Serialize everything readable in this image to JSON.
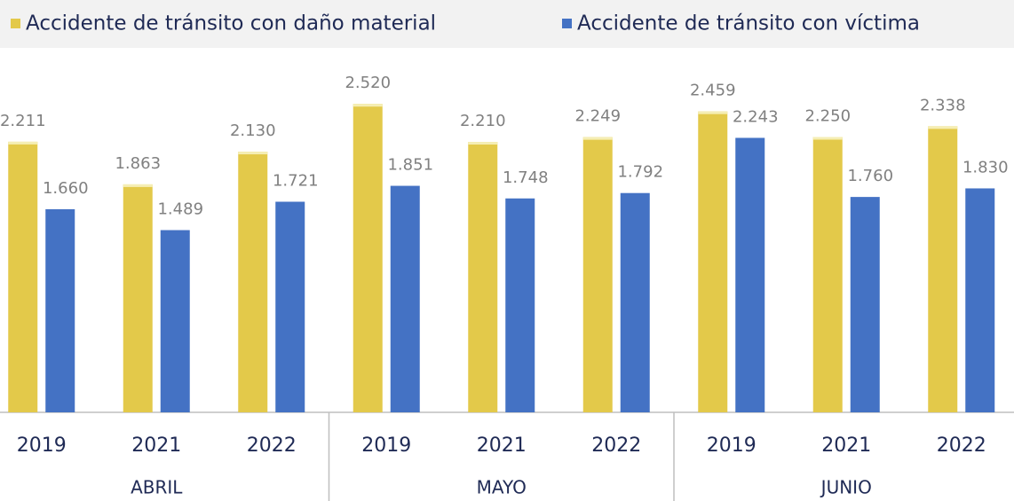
{
  "chart_data": {
    "type": "bar",
    "categories": [
      "2019",
      "2021",
      "2022",
      "2019",
      "2021",
      "2022",
      "2019",
      "2021",
      "2022"
    ],
    "groups": [
      "ABRIL",
      "MAYO",
      "JUNIO"
    ],
    "series": [
      {
        "name": "Accidente de tránsito con daño material",
        "color": "#e3c94a",
        "values": [
          2211,
          1863,
          2130,
          2520,
          2210,
          2249,
          2459,
          2250,
          2338
        ],
        "value_labels": [
          "2.211",
          "1.863",
          "2.130",
          "2.520",
          "2.210",
          "2.249",
          "2.459",
          "2.250",
          "2.338"
        ]
      },
      {
        "name": "Accidente de tránsito  con víctima",
        "color": "#4472c4",
        "values": [
          1660,
          1489,
          1721,
          1851,
          1748,
          1792,
          2243,
          1760,
          1830
        ],
        "value_labels": [
          "1.660",
          "1.489",
          "1.721",
          "1.851",
          "1.748",
          "1.792",
          "2.243",
          "1.760",
          "1.830"
        ]
      }
    ],
    "ylim": [
      0,
      3000
    ],
    "legend": "top"
  }
}
